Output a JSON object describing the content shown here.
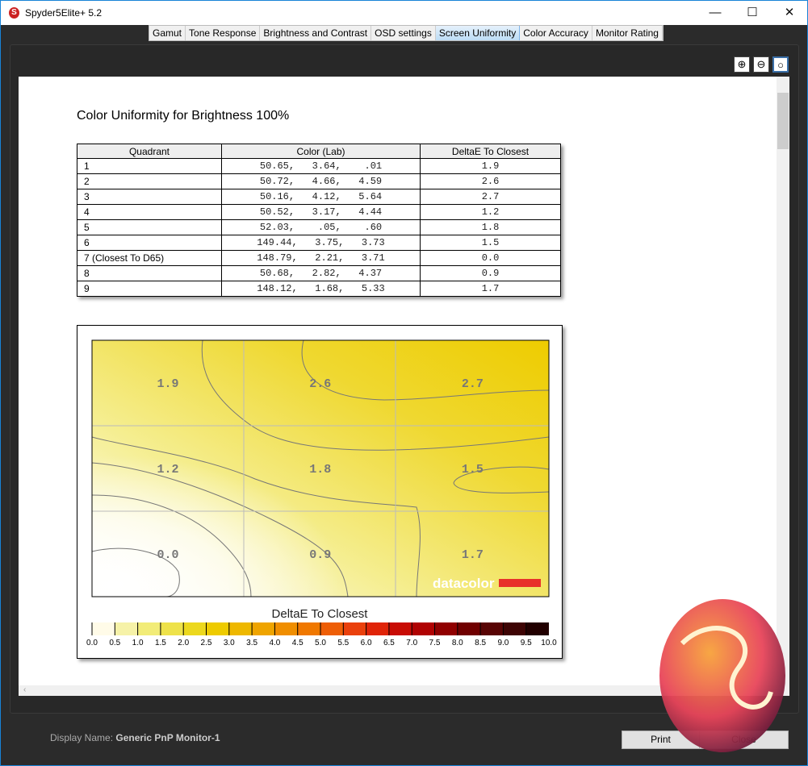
{
  "window": {
    "title": "Spyder5Elite+ 5.2",
    "minimize": "—",
    "maximize": "☐",
    "close": "✕"
  },
  "tabs": [
    {
      "label": "Gamut"
    },
    {
      "label": "Tone Response"
    },
    {
      "label": "Brightness and Contrast"
    },
    {
      "label": "OSD settings"
    },
    {
      "label": "Screen Uniformity",
      "active": true
    },
    {
      "label": "Color Accuracy"
    },
    {
      "label": "Monitor Rating"
    }
  ],
  "zoom_icons": [
    "zoom-in-icon",
    "zoom-out-icon",
    "zoom-fit-icon"
  ],
  "report": {
    "title": "Color Uniformity for Brightness 100%",
    "table": {
      "headers": [
        "Quadrant",
        "Color (Lab)",
        "DeltaE To Closest"
      ],
      "rows": [
        [
          "1",
          "50.65,   3.64,    .01",
          "1.9"
        ],
        [
          "2",
          "50.72,   4.66,   4.59",
          "2.6"
        ],
        [
          "3",
          "50.16,   4.12,   5.64",
          "2.7"
        ],
        [
          "4",
          "50.52,   3.17,   4.44",
          "1.2"
        ],
        [
          "5",
          "52.03,    .05,    .60",
          "1.8"
        ],
        [
          "6",
          "149.44,   3.75,   3.73",
          "1.5"
        ],
        [
          "7 (Closest To D65)",
          "148.79,   2.21,   3.71",
          "0.0"
        ],
        [
          "8",
          "50.68,   2.82,   4.37",
          "0.9"
        ],
        [
          "9",
          "148.12,   1.68,   5.33",
          "1.7"
        ]
      ]
    }
  },
  "chart_data": {
    "type": "heatmap",
    "grid": [
      [
        "1.9",
        "2.6",
        "2.7"
      ],
      [
        "1.2",
        "1.8",
        "1.5"
      ],
      [
        "0.0",
        "0.9",
        "1.7"
      ]
    ],
    "colorbar_title": "DeltaE To Closest",
    "colorbar_ticks": [
      "0.0",
      "0.5",
      "1.0",
      "1.5",
      "2.0",
      "2.5",
      "3.0",
      "3.5",
      "4.0",
      "4.5",
      "5.0",
      "5.5",
      "6.0",
      "6.5",
      "7.0",
      "7.5",
      "8.0",
      "8.5",
      "9.0",
      "9.5",
      "10.0"
    ],
    "colorbar_colors": [
      "#fffbe8",
      "#f6f2a8",
      "#f2ec78",
      "#eee24a",
      "#ecd81e",
      "#eecb00",
      "#eeb800",
      "#efa400",
      "#f08e00",
      "#f07800",
      "#ee5e06",
      "#ea400c",
      "#e02408",
      "#c80c04",
      "#b00202",
      "#900000",
      "#700000",
      "#580404",
      "#3e0404",
      "#220000"
    ],
    "range": [
      0,
      10
    ],
    "watermark": "datacolor"
  },
  "footer": {
    "display_label": "Display Name:",
    "display_value": "Generic PnP Monitor-1",
    "print": "Print",
    "close": "Close"
  }
}
